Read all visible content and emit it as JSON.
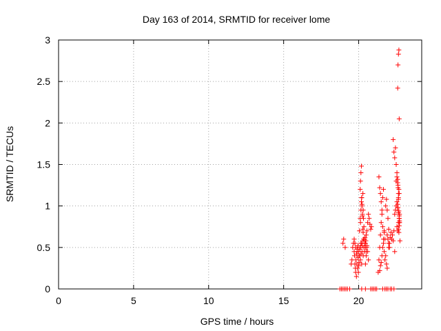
{
  "chart_data": {
    "type": "scatter",
    "title": "Day 163 of 2014, SRMTID for receiver lome",
    "xlabel": "GPS time / hours",
    "ylabel": "SRMTID / TECUs",
    "xlim": [
      0,
      24.2
    ],
    "ylim": [
      0,
      3
    ],
    "xticks": [
      0,
      5,
      10,
      15,
      20
    ],
    "yticks": [
      0,
      0.5,
      1,
      1.5,
      2,
      2.5,
      3
    ],
    "xtick_labels": [
      "0",
      "5",
      "10",
      "15",
      "20"
    ],
    "ytick_labels": [
      "0",
      "0.5",
      "1",
      "1.5",
      "2",
      "2.5",
      "3"
    ],
    "grid": true,
    "marker": "plus",
    "series": [
      {
        "color": "#ff0000",
        "x": [
          18.75,
          18.85,
          18.95,
          19.05,
          19.15,
          19.25,
          19.4,
          20.2,
          20.45,
          20.8,
          20.9,
          21.0,
          21.1,
          21.2,
          21.6,
          21.75,
          21.85,
          21.95,
          22.1,
          22.2,
          22.35,
          18.95,
          19.0,
          19.1,
          19.5,
          19.55,
          19.6,
          19.65,
          19.7,
          19.72,
          19.75,
          19.78,
          19.8,
          19.82,
          19.85,
          19.88,
          19.9,
          19.92,
          19.95,
          19.98,
          20.0,
          20.02,
          20.05,
          20.08,
          20.1,
          20.12,
          20.15,
          20.18,
          20.2,
          20.22,
          20.25,
          20.28,
          20.3,
          20.32,
          20.35,
          20.38,
          20.4,
          20.42,
          20.45,
          20.48,
          20.5,
          20.55,
          19.7,
          19.75,
          19.8,
          19.85,
          19.9,
          19.95,
          20.0,
          20.05,
          20.1,
          20.15,
          20.05,
          20.1,
          20.12,
          20.15,
          20.18,
          20.2,
          20.22,
          20.25,
          20.28,
          20.3,
          20.32,
          20.35,
          20.1,
          20.12,
          20.15,
          20.18,
          20.2,
          20.22,
          20.25,
          20.28,
          20.3,
          20.4,
          20.45,
          20.5,
          20.55,
          20.6,
          20.65,
          20.7,
          20.75,
          20.8,
          20.85,
          20.45,
          20.5,
          20.55,
          20.6,
          20.65,
          21.3,
          21.35,
          21.4,
          21.45,
          21.5,
          21.55,
          21.6,
          21.65,
          21.7,
          21.75,
          21.8,
          21.85,
          21.9,
          21.35,
          21.4,
          21.45,
          21.5,
          21.55,
          21.6,
          21.65,
          21.7,
          21.75,
          21.4,
          21.45,
          21.5,
          21.55,
          21.6,
          21.65,
          21.7,
          21.8,
          21.85,
          21.9,
          21.95,
          22.0,
          22.0,
          22.05,
          22.1,
          22.15,
          22.2,
          22.25,
          22.3,
          22.35,
          22.4,
          22.3,
          22.35,
          22.4,
          22.45,
          22.5,
          22.55,
          22.6,
          22.62,
          22.65,
          22.4,
          22.45,
          22.5,
          22.55,
          22.6,
          22.65,
          22.7,
          22.72,
          22.5,
          22.55,
          22.6,
          22.62,
          22.65,
          22.68,
          22.7,
          22.6,
          22.62,
          22.65,
          22.68,
          22.7,
          21.9,
          21.95,
          22.0,
          22.05,
          22.55,
          22.6,
          22.65,
          22.7,
          22.72,
          22.75,
          22.6,
          22.62,
          22.65,
          22.68,
          22.7,
          22.72,
          22.65,
          22.68,
          22.7,
          22.72
        ],
        "y": [
          0,
          0,
          0,
          0,
          0,
          0,
          0,
          0,
          0,
          0,
          0,
          0,
          0,
          0,
          0,
          0,
          0,
          0,
          0,
          0,
          0,
          0.55,
          0.6,
          0.5,
          0.3,
          0.35,
          0.5,
          0.55,
          0.45,
          0.4,
          0.3,
          0.25,
          0.2,
          0.35,
          0.15,
          0.3,
          0.45,
          0.25,
          0.38,
          0.2,
          0.28,
          0.32,
          0.4,
          0.48,
          0.5,
          0.35,
          0.42,
          0.55,
          0.3,
          0.45,
          0.52,
          0.58,
          0.4,
          0.6,
          0.5,
          0.45,
          0.55,
          0.62,
          0.5,
          0.58,
          0.45,
          0.52,
          0.6,
          0.55,
          0.5,
          0.42,
          0.48,
          0.52,
          0.45,
          0.4,
          0.5,
          0.55,
          0.7,
          0.85,
          0.8,
          0.95,
          1.05,
          1.1,
          1.0,
          0.9,
          1.15,
          0.95,
          0.85,
          0.75,
          1.2,
          1.3,
          1.4,
          1.48,
          1.1,
          1.02,
          0.88,
          0.72,
          0.68,
          0.6,
          0.55,
          0.65,
          0.7,
          0.8,
          0.9,
          0.85,
          0.78,
          0.72,
          0.75,
          0.3,
          0.4,
          0.5,
          0.45,
          0.35,
          0.2,
          0.35,
          0.5,
          0.65,
          0.8,
          0.95,
          1.1,
          1.2,
          0.7,
          0.6,
          0.4,
          0.3,
          0.25,
          1.35,
          1.22,
          1.15,
          1.05,
          0.9,
          0.75,
          0.55,
          0.45,
          0.35,
          0.22,
          0.28,
          0.32,
          0.4,
          0.5,
          0.6,
          0.68,
          1.0,
          1.08,
          0.95,
          0.85,
          0.72,
          0.5,
          0.55,
          0.62,
          0.68,
          0.6,
          0.65,
          0.58,
          0.7,
          0.45,
          1.8,
          1.65,
          1.58,
          1.7,
          1.5,
          1.4,
          1.32,
          1.25,
          1.15,
          0.9,
          0.95,
          1.0,
          1.05,
          0.98,
          0.92,
          0.85,
          0.8,
          1.3,
          1.35,
          1.28,
          1.22,
          1.1,
          1.2,
          1.15,
          2.42,
          2.7,
          2.83,
          2.88,
          2.05,
          0.65,
          0.6,
          0.55,
          0.5,
          0.75,
          0.7,
          0.8,
          0.85,
          0.9,
          0.58,
          1.02,
          0.98,
          1.08,
          0.94,
          0.88,
          0.82,
          0.72,
          0.68,
          0.76,
          0.8
        ]
      }
    ]
  }
}
